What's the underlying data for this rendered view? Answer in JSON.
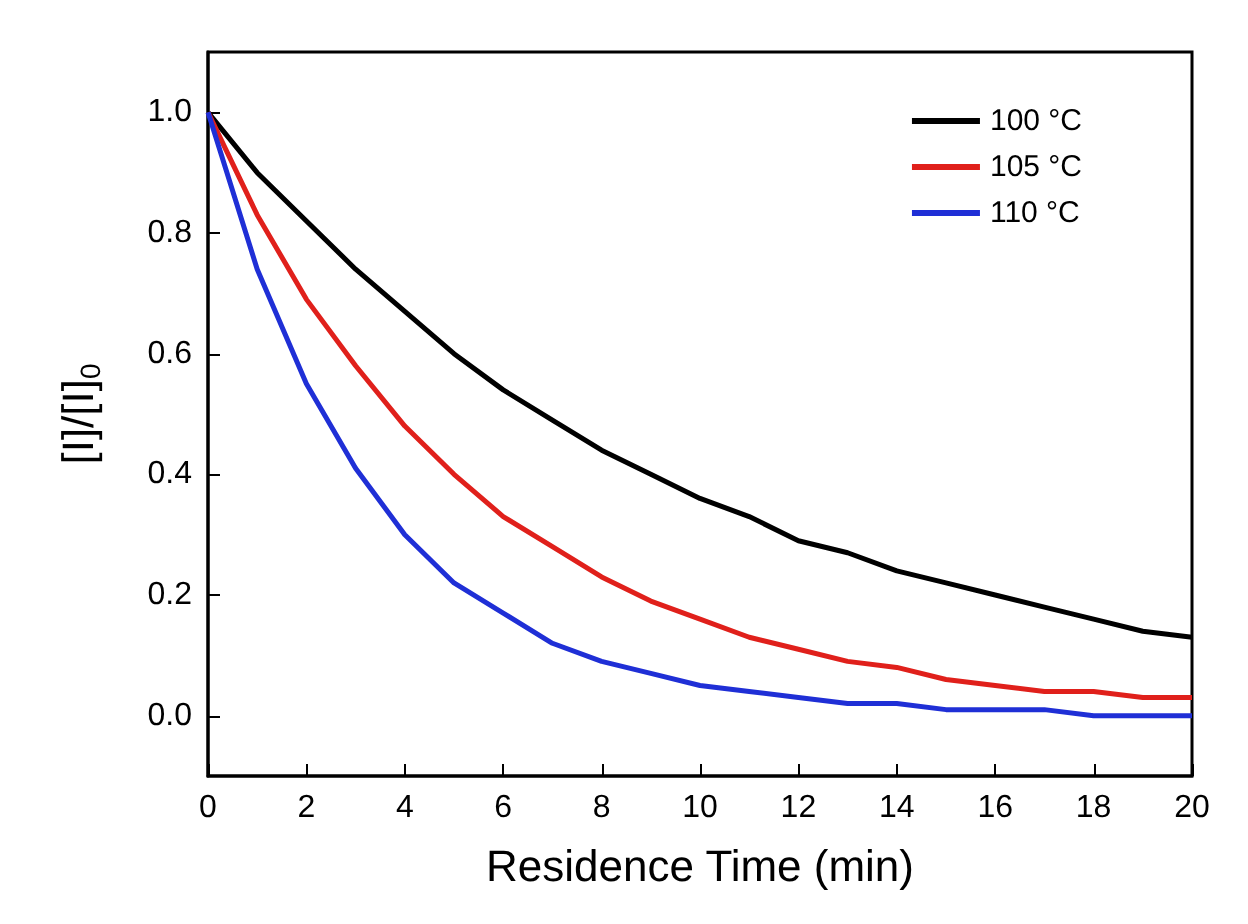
{
  "chart_data": {
    "type": "line",
    "xlabel": "Residence Time (min)",
    "ylabel": "[I]/[I]$_{0}$",
    "x": [
      0,
      1,
      2,
      3,
      4,
      5,
      6,
      7,
      8,
      9,
      10,
      11,
      12,
      13,
      14,
      15,
      16,
      17,
      18,
      19,
      20
    ],
    "series": [
      {
        "name": "100 °C",
        "color": "#000000",
        "values": [
          1,
          0.9,
          0.82,
          0.74,
          0.67,
          0.6,
          0.54,
          0.49,
          0.44,
          0.4,
          0.36,
          0.33,
          0.29,
          0.27,
          0.24,
          0.22,
          0.2,
          0.18,
          0.16,
          0.14,
          0.13
        ]
      },
      {
        "name": "105 °C",
        "color": "#e0201b",
        "values": [
          1,
          0.83,
          0.69,
          0.58,
          0.48,
          0.4,
          0.33,
          0.28,
          0.23,
          0.19,
          0.16,
          0.13,
          0.11,
          0.09,
          0.08,
          0.06,
          0.05,
          0.04,
          0.04,
          0.03,
          0.03
        ]
      },
      {
        "name": "110 °C",
        "color": "#1f2fd6",
        "values": [
          1,
          0.74,
          0.55,
          0.41,
          0.3,
          0.22,
          0.17,
          0.12,
          0.09,
          0.07,
          0.05,
          0.04,
          0.03,
          0.02,
          0.02,
          0.01,
          0.01,
          0.01,
          0,
          0,
          0
        ]
      }
    ],
    "xlim": [
      0,
      20
    ],
    "xticks": [
      0,
      2,
      4,
      6,
      8,
      10,
      12,
      14,
      16,
      18,
      20
    ],
    "ylim": [
      -0.1,
      1.1
    ],
    "yticks": [
      {
        "value": 0,
        "label": "0.0"
      },
      {
        "value": 0.2,
        "label": "0.2"
      },
      {
        "value": 0.4,
        "label": "0.4"
      },
      {
        "value": 0.6,
        "label": "0.6"
      },
      {
        "value": 0.8,
        "label": "0.8"
      },
      {
        "value": 1,
        "label": "1.0"
      }
    ],
    "legend": "top right",
    "grid": false,
    "marker": "none",
    "line_style": "solid"
  }
}
